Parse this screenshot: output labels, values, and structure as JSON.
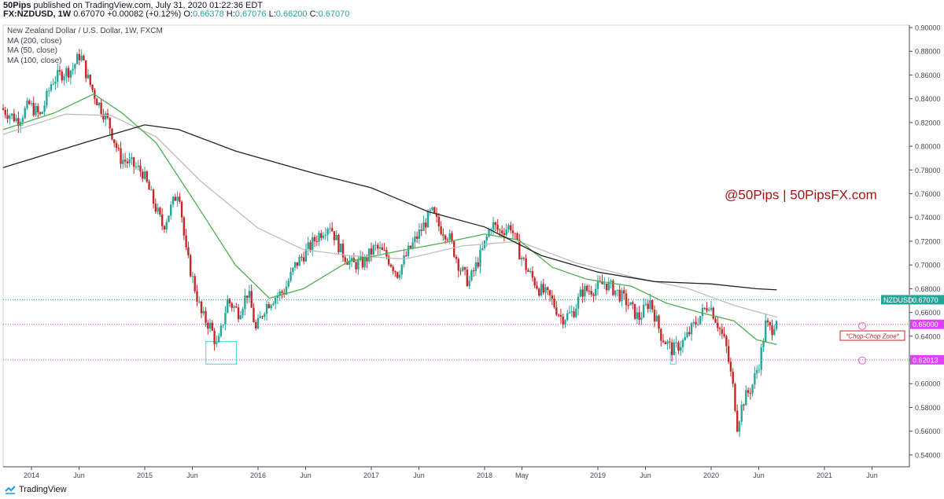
{
  "header": {
    "author": "50Pips",
    "published": "published on TradingView.com, July 31, 2020 01:22:36 EDT",
    "symbol_line": "FX:NZDUSD, 1W",
    "last": "0.67070",
    "change": "+0.00082 (+0.12%)",
    "open_label": "O:",
    "open": "0.66378",
    "high_label": "H:",
    "high": "0.67076",
    "low_label": "L:",
    "low": "0.66200",
    "close_label": "C:",
    "close": "0.67070"
  },
  "legend": {
    "title": "New Zealand Dollar / U.S. Dollar, 1W, FXCM",
    "ma200": "MA (200, close)",
    "ma50": "MA (50, close)",
    "ma100": "MA (100, close)"
  },
  "footer": {
    "brand": "TradingView",
    "logo_icon": "tradingview-logo-icon"
  },
  "colors": {
    "up": "#26a69a",
    "down": "#c62828",
    "ma200": "#222222",
    "ma50": "#4caf50",
    "ma100": "#bdbdbd",
    "watermark": "#a31515",
    "price_line": "#26a69a",
    "level": "#e040fb",
    "box": "#4dd0e1"
  },
  "chart_data": {
    "type": "candlestick",
    "title": "New Zealand Dollar / U.S. Dollar, 1W, FXCM",
    "watermark": "@50Pips | 50PipsFX.com",
    "x_ticks": [
      "2014",
      "Jun",
      "2015",
      "Jun",
      "2016",
      "Jun",
      "2017",
      "Jun",
      "2018",
      "May",
      "2019",
      "Jun",
      "2020",
      "Jun",
      "2021",
      "Jun"
    ],
    "x_tick_dates": [
      2014.0,
      2014.42,
      2015.0,
      2015.42,
      2016.0,
      2016.42,
      2017.0,
      2017.42,
      2018.0,
      2018.33,
      2019.0,
      2019.42,
      2020.0,
      2020.42,
      2021.0,
      2021.42
    ],
    "x_range": [
      2013.75,
      2021.75
    ],
    "y_ticks": [
      "0.54000",
      "0.56000",
      "0.58000",
      "0.60000",
      "0.62000",
      "0.64000",
      "0.66000",
      "0.68000",
      "0.70000",
      "0.72000",
      "0.74000",
      "0.76000",
      "0.78000",
      "0.80000",
      "0.82000",
      "0.84000",
      "0.86000",
      "0.88000",
      "0.90000"
    ],
    "y_range": [
      0.53,
      0.902
    ],
    "price_path": [
      [
        2013.75,
        0.832
      ],
      [
        2013.9,
        0.822
      ],
      [
        2014.0,
        0.835
      ],
      [
        2014.1,
        0.825
      ],
      [
        2014.2,
        0.855
      ],
      [
        2014.3,
        0.862
      ],
      [
        2014.38,
        0.865
      ],
      [
        2014.45,
        0.878
      ],
      [
        2014.52,
        0.856
      ],
      [
        2014.6,
        0.838
      ],
      [
        2014.7,
        0.82
      ],
      [
        2014.8,
        0.79
      ],
      [
        2014.9,
        0.785
      ],
      [
        2015.0,
        0.778
      ],
      [
        2015.1,
        0.752
      ],
      [
        2015.18,
        0.732
      ],
      [
        2015.25,
        0.748
      ],
      [
        2015.32,
        0.765
      ],
      [
        2015.38,
        0.712
      ],
      [
        2015.45,
        0.685
      ],
      [
        2015.52,
        0.658
      ],
      [
        2015.6,
        0.648
      ],
      [
        2015.66,
        0.63
      ],
      [
        2015.75,
        0.67
      ],
      [
        2015.85,
        0.66
      ],
      [
        2015.93,
        0.678
      ],
      [
        2016.0,
        0.645
      ],
      [
        2016.08,
        0.665
      ],
      [
        2016.15,
        0.672
      ],
      [
        2016.25,
        0.678
      ],
      [
        2016.35,
        0.7
      ],
      [
        2016.45,
        0.712
      ],
      [
        2016.55,
        0.725
      ],
      [
        2016.65,
        0.735
      ],
      [
        2016.75,
        0.712
      ],
      [
        2016.85,
        0.7
      ],
      [
        2016.95,
        0.702
      ],
      [
        2017.05,
        0.715
      ],
      [
        2017.15,
        0.708
      ],
      [
        2017.25,
        0.693
      ],
      [
        2017.35,
        0.712
      ],
      [
        2017.45,
        0.728
      ],
      [
        2017.55,
        0.745
      ],
      [
        2017.62,
        0.732
      ],
      [
        2017.7,
        0.725
      ],
      [
        2017.8,
        0.698
      ],
      [
        2017.88,
        0.685
      ],
      [
        2018.0,
        0.712
      ],
      [
        2018.08,
        0.735
      ],
      [
        2018.15,
        0.728
      ],
      [
        2018.25,
        0.733
      ],
      [
        2018.32,
        0.712
      ],
      [
        2018.4,
        0.695
      ],
      [
        2018.5,
        0.68
      ],
      [
        2018.6,
        0.672
      ],
      [
        2018.7,
        0.655
      ],
      [
        2018.8,
        0.66
      ],
      [
        2018.88,
        0.678
      ],
      [
        2019.0,
        0.68
      ],
      [
        2019.08,
        0.685
      ],
      [
        2019.18,
        0.678
      ],
      [
        2019.28,
        0.668
      ],
      [
        2019.38,
        0.655
      ],
      [
        2019.48,
        0.67
      ],
      [
        2019.58,
        0.64
      ],
      [
        2019.68,
        0.628
      ],
      [
        2019.78,
        0.636
      ],
      [
        2019.9,
        0.654
      ],
      [
        2020.0,
        0.668
      ],
      [
        2020.08,
        0.65
      ],
      [
        2020.15,
        0.632
      ],
      [
        2020.22,
        0.592
      ],
      [
        2020.25,
        0.565
      ],
      [
        2020.3,
        0.585
      ],
      [
        2020.38,
        0.598
      ],
      [
        2020.45,
        0.62
      ],
      [
        2020.5,
        0.65
      ],
      [
        2020.55,
        0.645
      ],
      [
        2020.62,
        0.662
      ],
      [
        2020.58,
        0.671
      ]
    ],
    "ma200": [
      [
        2013.75,
        0.782
      ],
      [
        2014.5,
        0.804
      ],
      [
        2015.0,
        0.818
      ],
      [
        2015.3,
        0.814
      ],
      [
        2015.8,
        0.796
      ],
      [
        2016.5,
        0.777
      ],
      [
        2017.0,
        0.765
      ],
      [
        2017.5,
        0.745
      ],
      [
        2018.0,
        0.732
      ],
      [
        2018.5,
        0.708
      ],
      [
        2019.0,
        0.694
      ],
      [
        2019.5,
        0.686
      ],
      [
        2020.0,
        0.684
      ],
      [
        2020.4,
        0.68
      ],
      [
        2020.58,
        0.679
      ]
    ],
    "ma100": [
      [
        2013.75,
        0.81
      ],
      [
        2014.3,
        0.827
      ],
      [
        2014.7,
        0.826
      ],
      [
        2015.1,
        0.808
      ],
      [
        2015.5,
        0.77
      ],
      [
        2016.0,
        0.731
      ],
      [
        2016.4,
        0.713
      ],
      [
        2016.8,
        0.708
      ],
      [
        2017.3,
        0.705
      ],
      [
        2017.8,
        0.716
      ],
      [
        2018.3,
        0.72
      ],
      [
        2018.8,
        0.702
      ],
      [
        2019.3,
        0.69
      ],
      [
        2019.8,
        0.68
      ],
      [
        2020.2,
        0.666
      ],
      [
        2020.58,
        0.656
      ]
    ],
    "ma50": [
      [
        2013.75,
        0.814
      ],
      [
        2014.2,
        0.828
      ],
      [
        2014.55,
        0.844
      ],
      [
        2014.8,
        0.828
      ],
      [
        2015.1,
        0.803
      ],
      [
        2015.45,
        0.752
      ],
      [
        2015.8,
        0.7
      ],
      [
        2016.1,
        0.672
      ],
      [
        2016.4,
        0.68
      ],
      [
        2016.8,
        0.703
      ],
      [
        2017.2,
        0.711
      ],
      [
        2017.6,
        0.718
      ],
      [
        2018.0,
        0.726
      ],
      [
        2018.3,
        0.721
      ],
      [
        2018.6,
        0.698
      ],
      [
        2018.9,
        0.688
      ],
      [
        2019.3,
        0.682
      ],
      [
        2019.6,
        0.668
      ],
      [
        2019.9,
        0.66
      ],
      [
        2020.2,
        0.653
      ],
      [
        2020.4,
        0.637
      ],
      [
        2020.58,
        0.633
      ]
    ],
    "levels": [
      {
        "price": 0.6707,
        "label": "NZDUSD",
        "value": "0.67070",
        "style": "price"
      },
      {
        "price": 0.65,
        "label": "",
        "value": "0.65000",
        "style": "level"
      },
      {
        "price": 0.62013,
        "label": "",
        "value": "0.62013",
        "style": "level"
      }
    ],
    "annotation": "*Chop-Chop Zone*",
    "zone_boxes": [
      {
        "x0": 2015.54,
        "x1": 2015.81,
        "y0": 0.6165,
        "y1": 0.6355
      },
      {
        "x0": 2019.64,
        "x1": 2019.69,
        "y0": 0.6165,
        "y1": 0.6265
      }
    ]
  }
}
